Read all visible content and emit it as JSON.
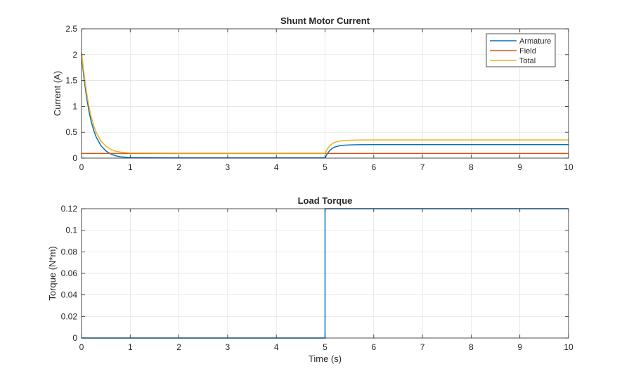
{
  "chart_data": [
    {
      "type": "line",
      "title": "Shunt Motor Current",
      "xlabel": "",
      "ylabel": "Current (A)",
      "xlim": [
        0,
        10
      ],
      "ylim": [
        0,
        2.5
      ],
      "xticks": [
        0,
        1,
        2,
        3,
        4,
        5,
        6,
        7,
        8,
        9,
        10
      ],
      "yticks": [
        0,
        0.5,
        1,
        1.5,
        2,
        2.5
      ],
      "ytick_labels": [
        "0",
        "0.5",
        "1",
        "1.5",
        "2",
        "2.5"
      ],
      "grid": true,
      "legend": "top-right",
      "series": [
        {
          "name": "Armature",
          "color": "#0072BD",
          "x": [
            0,
            0.05,
            0.1,
            0.15,
            0.2,
            0.25,
            0.3,
            0.4,
            0.5,
            0.6,
            0.7,
            0.8,
            1.0,
            2,
            3,
            4,
            4.99,
            5.0,
            5.05,
            5.1,
            5.15,
            5.2,
            5.3,
            5.4,
            5.5,
            5.7,
            6.0,
            7,
            8,
            9,
            10
          ],
          "y": [
            2.0,
            1.55,
            1.2,
            0.92,
            0.7,
            0.54,
            0.41,
            0.24,
            0.14,
            0.08,
            0.045,
            0.025,
            0.01,
            0.005,
            0.005,
            0.005,
            0.005,
            0.005,
            0.09,
            0.15,
            0.19,
            0.215,
            0.24,
            0.25,
            0.255,
            0.26,
            0.262,
            0.262,
            0.262,
            0.262,
            0.262
          ]
        },
        {
          "name": "Field",
          "color": "#D95319",
          "x": [
            0,
            1,
            2,
            3,
            4,
            5,
            6,
            7,
            8,
            9,
            10
          ],
          "y": [
            0.09,
            0.09,
            0.09,
            0.09,
            0.09,
            0.09,
            0.09,
            0.09,
            0.09,
            0.09,
            0.09
          ]
        },
        {
          "name": "Total",
          "color": "#EDB120",
          "x": [
            0,
            0.05,
            0.1,
            0.15,
            0.2,
            0.25,
            0.3,
            0.4,
            0.5,
            0.6,
            0.7,
            0.8,
            1.0,
            2,
            3,
            4,
            4.99,
            5.0,
            5.05,
            5.1,
            5.15,
            5.2,
            5.3,
            5.4,
            5.5,
            5.7,
            6.0,
            7,
            8,
            9,
            10
          ],
          "y": [
            2.05,
            1.64,
            1.29,
            1.01,
            0.79,
            0.63,
            0.5,
            0.33,
            0.23,
            0.17,
            0.135,
            0.115,
            0.1,
            0.095,
            0.095,
            0.095,
            0.095,
            0.095,
            0.18,
            0.24,
            0.28,
            0.305,
            0.33,
            0.34,
            0.345,
            0.35,
            0.352,
            0.352,
            0.352,
            0.352,
            0.352
          ]
        }
      ]
    },
    {
      "type": "line",
      "title": "Load Torque",
      "xlabel": "Time (s)",
      "ylabel": "Torque (N*m)",
      "xlim": [
        0,
        10
      ],
      "ylim": [
        0,
        0.12
      ],
      "xticks": [
        0,
        1,
        2,
        3,
        4,
        5,
        6,
        7,
        8,
        9,
        10
      ],
      "yticks": [
        0,
        0.02,
        0.04,
        0.06,
        0.08,
        0.1,
        0.12
      ],
      "ytick_labels": [
        "0",
        "0.02",
        "0.04",
        "0.06",
        "0.08",
        "0.1",
        "0.12"
      ],
      "grid": true,
      "legend": "none",
      "series": [
        {
          "color": "#0072BD",
          "x": [
            0,
            5,
            5,
            10
          ],
          "y": [
            0,
            0,
            0.12,
            0.12
          ]
        }
      ]
    }
  ]
}
